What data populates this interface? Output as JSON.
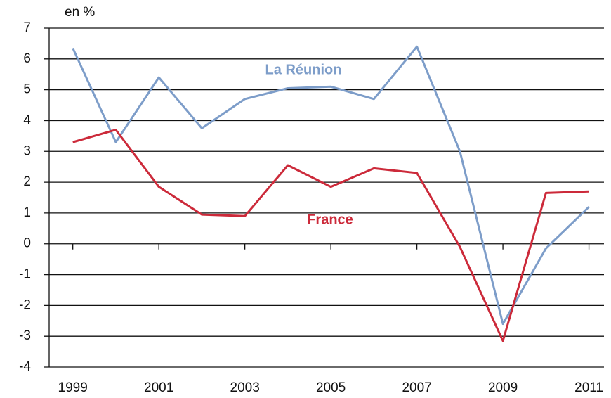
{
  "chart_data": {
    "type": "line",
    "y_label": "en %",
    "x": [
      1999,
      2000,
      2001,
      2002,
      2003,
      2004,
      2005,
      2006,
      2007,
      2008,
      2009,
      2010,
      2011
    ],
    "series": [
      {
        "name": "La Réunion",
        "color": "#7d9dc9",
        "values": [
          6.35,
          3.3,
          5.4,
          3.75,
          4.7,
          5.05,
          5.1,
          4.7,
          6.4,
          3.0,
          -2.6,
          -0.15,
          1.2
        ]
      },
      {
        "name": "France",
        "color": "#cc2a3a",
        "values": [
          3.3,
          3.7,
          1.85,
          0.95,
          0.9,
          2.55,
          1.85,
          2.45,
          2.3,
          -0.1,
          -3.15,
          1.65,
          1.7
        ]
      }
    ],
    "xlim": [
      1998.45,
      2011.35
    ],
    "xticks": [
      1999,
      2001,
      2003,
      2005,
      2007,
      2009,
      2011
    ],
    "ylim": [
      -4,
      7
    ],
    "yticks": [
      -4,
      -3,
      -2,
      -1,
      0,
      1,
      2,
      3,
      4,
      5,
      6,
      7
    ],
    "grid": true
  }
}
